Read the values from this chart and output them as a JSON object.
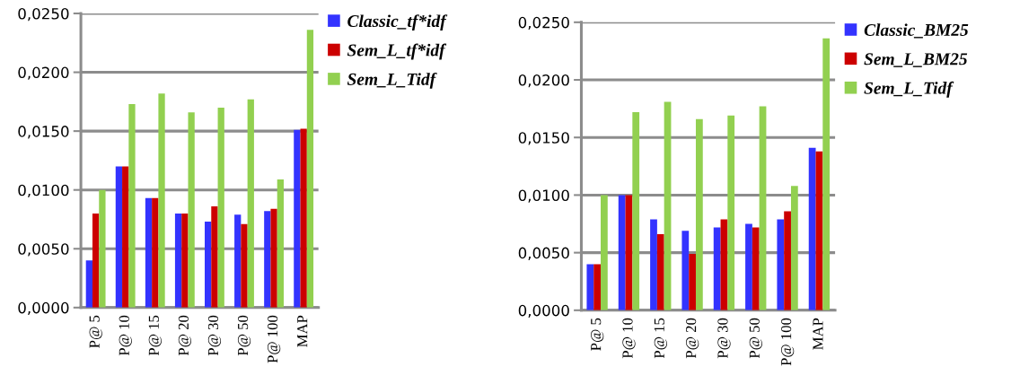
{
  "chart_data": [
    {
      "type": "bar",
      "categories": [
        "P@ 5",
        "P@ 10",
        "P@ 15",
        "P@ 20",
        "P@ 30",
        "P@ 50",
        "P@ 100",
        "MAP"
      ],
      "series": [
        {
          "name": "Classic_tf*idf",
          "color": "#3333ff",
          "values": [
            0.004,
            0.012,
            0.0093,
            0.008,
            0.0073,
            0.0079,
            0.0082,
            0.0151
          ]
        },
        {
          "name": "Sem_L_tf*idf",
          "color": "#cc0000",
          "values": [
            0.008,
            0.012,
            0.0093,
            0.008,
            0.0086,
            0.0071,
            0.0084,
            0.0152
          ]
        },
        {
          "name": "Sem_L_Tidf",
          "color": "#92d050",
          "values": [
            0.01,
            0.0173,
            0.0182,
            0.0166,
            0.017,
            0.0177,
            0.0109,
            0.0236
          ]
        }
      ],
      "ylim": [
        0,
        0.025
      ],
      "yticks": [
        {
          "value": 0,
          "label": "0,0000"
        },
        {
          "value": 0.005,
          "label": "0,0050"
        },
        {
          "value": 0.01,
          "label": "0,0100"
        },
        {
          "value": 0.015,
          "label": "0,0150"
        },
        {
          "value": 0.02,
          "label": "0,0200"
        },
        {
          "value": 0.025,
          "label": "0,0250"
        }
      ],
      "grid": "y",
      "legend": "top right"
    },
    {
      "type": "bar",
      "categories": [
        "P@ 5",
        "P@ 10",
        "P@ 15",
        "P@ 20",
        "P@ 30",
        "P@ 50",
        "P@ 100",
        "MAP"
      ],
      "series": [
        {
          "name": "Classic_BM25",
          "color": "#3333ff",
          "values": [
            0.004,
            0.01,
            0.0079,
            0.0069,
            0.0072,
            0.0075,
            0.0079,
            0.0141
          ]
        },
        {
          "name": "Sem_L_BM25",
          "color": "#cc0000",
          "values": [
            0.004,
            0.01,
            0.0066,
            0.0049,
            0.0079,
            0.0072,
            0.0086,
            0.0138
          ]
        },
        {
          "name": "Sem_L_Tidf",
          "color": "#92d050",
          "values": [
            0.01,
            0.0172,
            0.0181,
            0.0166,
            0.0169,
            0.0177,
            0.0108,
            0.0236
          ]
        }
      ],
      "ylim": [
        0,
        0.025
      ],
      "yticks": [
        {
          "value": 0,
          "label": "0,0000"
        },
        {
          "value": 0.005,
          "label": "0,0050"
        },
        {
          "value": 0.01,
          "label": "0,0100"
        },
        {
          "value": 0.015,
          "label": "0,0150"
        },
        {
          "value": 0.02,
          "label": "0,0200"
        },
        {
          "value": 0.025,
          "label": "0,0250"
        }
      ],
      "grid": "y",
      "legend": "top right"
    }
  ]
}
